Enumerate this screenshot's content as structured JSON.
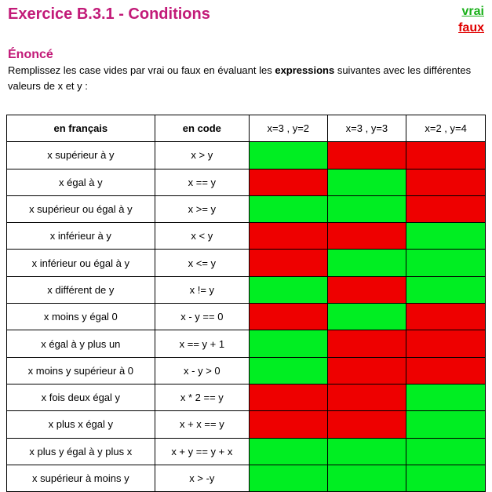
{
  "page": {
    "title": "Exercice B.3.1 - Conditions",
    "legend": {
      "vrai": "vrai",
      "faux": "faux"
    }
  },
  "enonce": {
    "heading": "Énoncé",
    "text_before": "Remplissez les case vides par vrai ou faux en évaluant les ",
    "text_bold": "expressions",
    "text_after": " suivantes avec les différentes valeurs de x et y :"
  },
  "colors": {
    "true": "#00ee22",
    "false": "#ee0000",
    "title": "#c21a78"
  },
  "table": {
    "headers": [
      "en français",
      "en code",
      "x=3 , y=2",
      "x=3 , y=3",
      "x=2 ,  y=4"
    ],
    "rows": [
      {
        "fr": "x supérieur à y",
        "code": "x > y",
        "results": [
          true,
          false,
          false
        ]
      },
      {
        "fr": "x égal à y",
        "code": "x == y",
        "results": [
          false,
          true,
          false
        ]
      },
      {
        "fr": "x supérieur ou égal à y",
        "code": "x >= y",
        "results": [
          true,
          true,
          false
        ]
      },
      {
        "fr": "x inférieur à y",
        "code": "x < y",
        "results": [
          false,
          false,
          true
        ]
      },
      {
        "fr": "x inférieur ou égal à y",
        "code": "x <= y",
        "results": [
          false,
          true,
          true
        ]
      },
      {
        "fr": "x différent de y",
        "code": "x != y",
        "results": [
          true,
          false,
          true
        ]
      },
      {
        "fr": "x moins y égal 0",
        "code": "x - y == 0",
        "results": [
          false,
          true,
          false
        ]
      },
      {
        "fr": "x égal à y plus un",
        "code": "x == y + 1",
        "results": [
          true,
          false,
          false
        ]
      },
      {
        "fr": "x moins y supérieur à 0",
        "code": "x - y > 0",
        "results": [
          true,
          false,
          false
        ]
      },
      {
        "fr": "x fois deux égal y",
        "code": "x * 2 == y",
        "results": [
          false,
          false,
          true
        ]
      },
      {
        "fr": "x plus x égal y",
        "code": "x + x == y",
        "results": [
          false,
          false,
          true
        ]
      },
      {
        "fr": "x plus y égal à y plus x",
        "code": "x + y == y + x",
        "results": [
          true,
          true,
          true
        ]
      },
      {
        "fr": "x supérieur à moins y",
        "code": "x > -y",
        "results": [
          true,
          true,
          true
        ]
      }
    ]
  }
}
